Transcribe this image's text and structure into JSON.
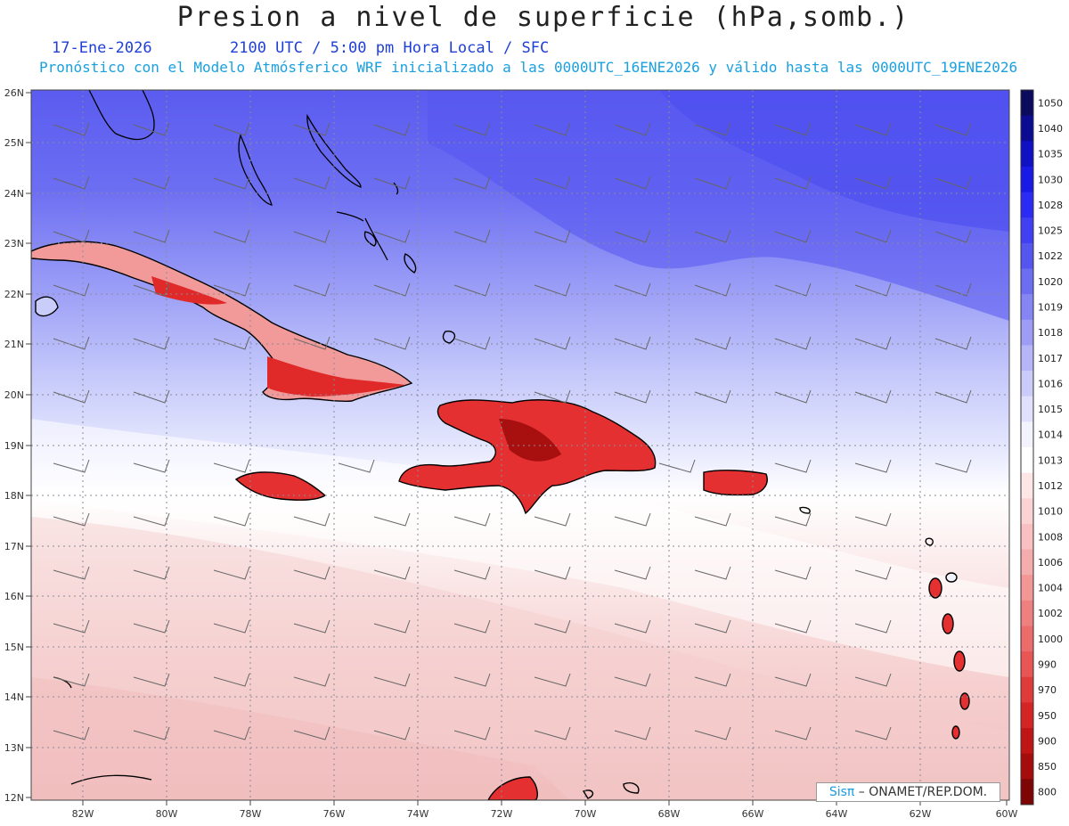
{
  "header": {
    "title": "Presion a nivel de superficie (hPa,somb.)",
    "date": "17-Ene-2026",
    "time": "2100 UTC / 5:00 pm Hora Local / SFC",
    "description": "Pronóstico con el Modelo Atmósferico WRF inicializado a las 0000UTC_16ENE2026 y válido hasta las  0000UTC_19ENE2026"
  },
  "map": {
    "lat_range": [
      12,
      26
    ],
    "lon_range": [
      -83.2,
      -60
    ],
    "lat_labels": [
      "12N",
      "13N",
      "14N",
      "15N",
      "16N",
      "17N",
      "18N",
      "19N",
      "20N",
      "21N",
      "22N",
      "23N",
      "24N",
      "25N",
      "26N"
    ],
    "lon_labels": [
      "82W",
      "80W",
      "78W",
      "76W",
      "74W",
      "72W",
      "70W",
      "68W",
      "66W",
      "64W",
      "62W",
      "60W"
    ],
    "colors": {
      "high": "#5a5bf0",
      "mid": "#c8cdfa",
      "neutral": "#ffffff",
      "low": "#f6cfcf",
      "land": "#e83232",
      "coast": "#000000"
    }
  },
  "colorbar": {
    "levels": [
      "1050",
      "1040",
      "1035",
      "1030",
      "1028",
      "1025",
      "1022",
      "1020",
      "1019",
      "1018",
      "1017",
      "1016",
      "1015",
      "1014",
      "1013",
      "1012",
      "1010",
      "1008",
      "1006",
      "1004",
      "1002",
      "1000",
      "990",
      "970",
      "950",
      "900",
      "850",
      "800"
    ],
    "colors": [
      "#0b0b5e",
      "#0c0c92",
      "#1010c4",
      "#1a1ae6",
      "#2b2bf5",
      "#4040f2",
      "#5555f0",
      "#6d6df2",
      "#8585f4",
      "#9d9df6",
      "#b5b5f8",
      "#cbcbfa",
      "#e0e0fc",
      "#f3f3fe",
      "#ffffff",
      "#fde6e6",
      "#fbd3d3",
      "#f8c0c0",
      "#f5acac",
      "#f29696",
      "#ef8080",
      "#ec6b6b",
      "#e85555",
      "#e03b3b",
      "#d42424",
      "#c01515",
      "#a50c0c",
      "#7d0505"
    ]
  },
  "footer": {
    "credit_logo": "Sisπ",
    "credit_text": " – ONAMET/REP.DOM."
  }
}
